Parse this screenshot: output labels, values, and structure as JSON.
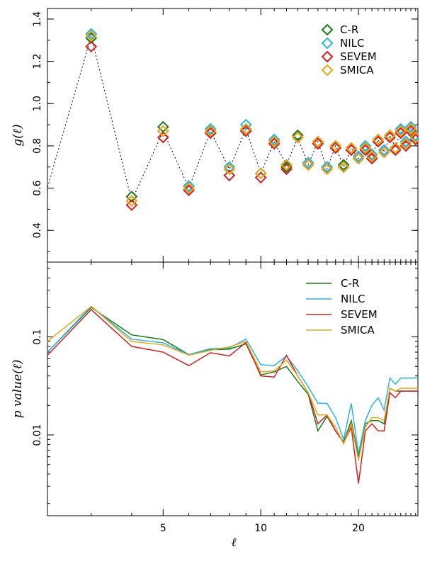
{
  "chart_data": [
    {
      "type": "scatter",
      "title": "",
      "xlabel": "",
      "ylabel": "g(ℓ)",
      "xscale": "log",
      "xlim": [
        2.2,
        30.5
      ],
      "ylim": [
        0.25,
        1.45
      ],
      "yticks": [
        0.4,
        0.6,
        0.8,
        1.0,
        1.2,
        1.4
      ],
      "yticklabels": [
        "0.4",
        "0.6",
        "0.8",
        "1.0",
        "1.2",
        "1.4"
      ],
      "marker": "diamond",
      "connector": "dotted line through SMICA points",
      "legend_position": "top-right",
      "x": [
        2,
        3,
        4,
        5,
        6,
        7,
        8,
        9,
        10,
        11,
        12,
        13,
        14,
        15,
        16,
        17,
        18,
        19,
        20,
        21,
        22,
        23,
        24,
        25,
        26,
        27,
        28,
        29,
        30
      ],
      "series": [
        {
          "name": "C-R",
          "color": "#1a7a1a",
          "values": [
            0.38,
            1.31,
            0.56,
            0.89,
            0.61,
            0.87,
            0.69,
            0.87,
            0.67,
            0.82,
            0.7,
            0.85,
            0.72,
            0.82,
            0.7,
            0.8,
            0.71,
            0.79,
            0.75,
            0.79,
            0.75,
            0.83,
            0.78,
            0.85,
            0.79,
            0.87,
            0.82,
            0.88,
            0.84
          ]
        },
        {
          "name": "NILC",
          "color": "#2ab4e8",
          "values": [
            0.38,
            1.33,
            0.54,
            0.87,
            0.61,
            0.88,
            0.7,
            0.9,
            0.67,
            0.83,
            0.71,
            0.84,
            0.72,
            0.82,
            0.7,
            0.8,
            0.7,
            0.79,
            0.75,
            0.8,
            0.76,
            0.83,
            0.78,
            0.85,
            0.79,
            0.88,
            0.82,
            0.89,
            0.85
          ]
        },
        {
          "name": "SEVEM",
          "color": "#d42020",
          "values": [
            0.35,
            1.27,
            0.52,
            0.84,
            0.59,
            0.86,
            0.66,
            0.87,
            0.65,
            0.81,
            0.69,
            0.84,
            0.71,
            0.81,
            0.69,
            0.79,
            0.7,
            0.78,
            0.74,
            0.78,
            0.74,
            0.82,
            0.77,
            0.84,
            0.78,
            0.86,
            0.8,
            0.87,
            0.83
          ]
        },
        {
          "name": "SMICA",
          "color": "#e8a818",
          "values": [
            0.38,
            1.32,
            0.54,
            0.87,
            0.6,
            0.87,
            0.69,
            0.88,
            0.67,
            0.82,
            0.71,
            0.84,
            0.71,
            0.82,
            0.69,
            0.8,
            0.7,
            0.79,
            0.74,
            0.79,
            0.75,
            0.83,
            0.77,
            0.85,
            0.79,
            0.87,
            0.81,
            0.88,
            0.84
          ]
        }
      ]
    },
    {
      "type": "line",
      "title": "",
      "xlabel": "ℓ",
      "ylabel": "p   value(ℓ)",
      "xscale": "log",
      "yscale": "log",
      "xlim": [
        2.2,
        30.5
      ],
      "ylim": [
        0.0015,
        0.58
      ],
      "xticks": [
        5,
        10,
        20
      ],
      "xticklabels": [
        "5",
        "10",
        "20"
      ],
      "yticks": [
        0.01,
        0.1
      ],
      "yticklabels": [
        "0.01",
        "0.1"
      ],
      "legend_position": "top-right",
      "x": [
        2.2,
        3,
        4,
        5,
        6,
        7,
        8,
        9,
        10,
        11,
        12,
        13,
        14,
        15,
        16,
        17,
        18,
        19,
        20,
        21,
        22,
        23,
        24,
        25,
        26,
        27,
        28,
        29,
        30,
        30.5
      ],
      "series": [
        {
          "name": "C-R",
          "color": "#1a7a1a",
          "values": [
            0.07,
            0.2,
            0.105,
            0.094,
            0.066,
            0.074,
            0.075,
            0.085,
            0.041,
            0.044,
            0.05,
            0.035,
            0.026,
            0.011,
            0.0155,
            0.011,
            0.0085,
            0.014,
            0.006,
            0.013,
            0.014,
            0.014,
            0.013,
            0.03,
            0.028,
            0.028,
            0.028,
            0.028,
            0.028,
            0.028
          ]
        },
        {
          "name": "NILC",
          "color": "#2ab4e8",
          "values": [
            0.07,
            0.205,
            0.095,
            0.087,
            0.066,
            0.076,
            0.077,
            0.095,
            0.052,
            0.051,
            0.064,
            0.045,
            0.031,
            0.021,
            0.021,
            0.015,
            0.009,
            0.021,
            0.0065,
            0.014,
            0.02,
            0.024,
            0.018,
            0.038,
            0.033,
            0.038,
            0.038,
            0.038,
            0.038,
            0.038
          ]
        },
        {
          "name": "SEVEM",
          "color": "#d42020",
          "values": [
            0.065,
            0.19,
            0.08,
            0.07,
            0.051,
            0.069,
            0.064,
            0.088,
            0.04,
            0.039,
            0.065,
            0.04,
            0.027,
            0.013,
            0.016,
            0.011,
            0.0083,
            0.012,
            0.0032,
            0.011,
            0.013,
            0.011,
            0.011,
            0.027,
            0.024,
            0.028,
            0.028,
            0.028,
            0.028,
            0.028
          ]
        },
        {
          "name": "SMICA",
          "color": "#e8a818",
          "values": [
            0.09,
            0.205,
            0.09,
            0.083,
            0.065,
            0.073,
            0.079,
            0.09,
            0.044,
            0.045,
            0.058,
            0.04,
            0.027,
            0.016,
            0.016,
            0.012,
            0.0081,
            0.013,
            0.0055,
            0.012,
            0.015,
            0.015,
            0.014,
            0.03,
            0.028,
            0.03,
            0.03,
            0.03,
            0.03,
            0.03
          ]
        }
      ]
    }
  ]
}
